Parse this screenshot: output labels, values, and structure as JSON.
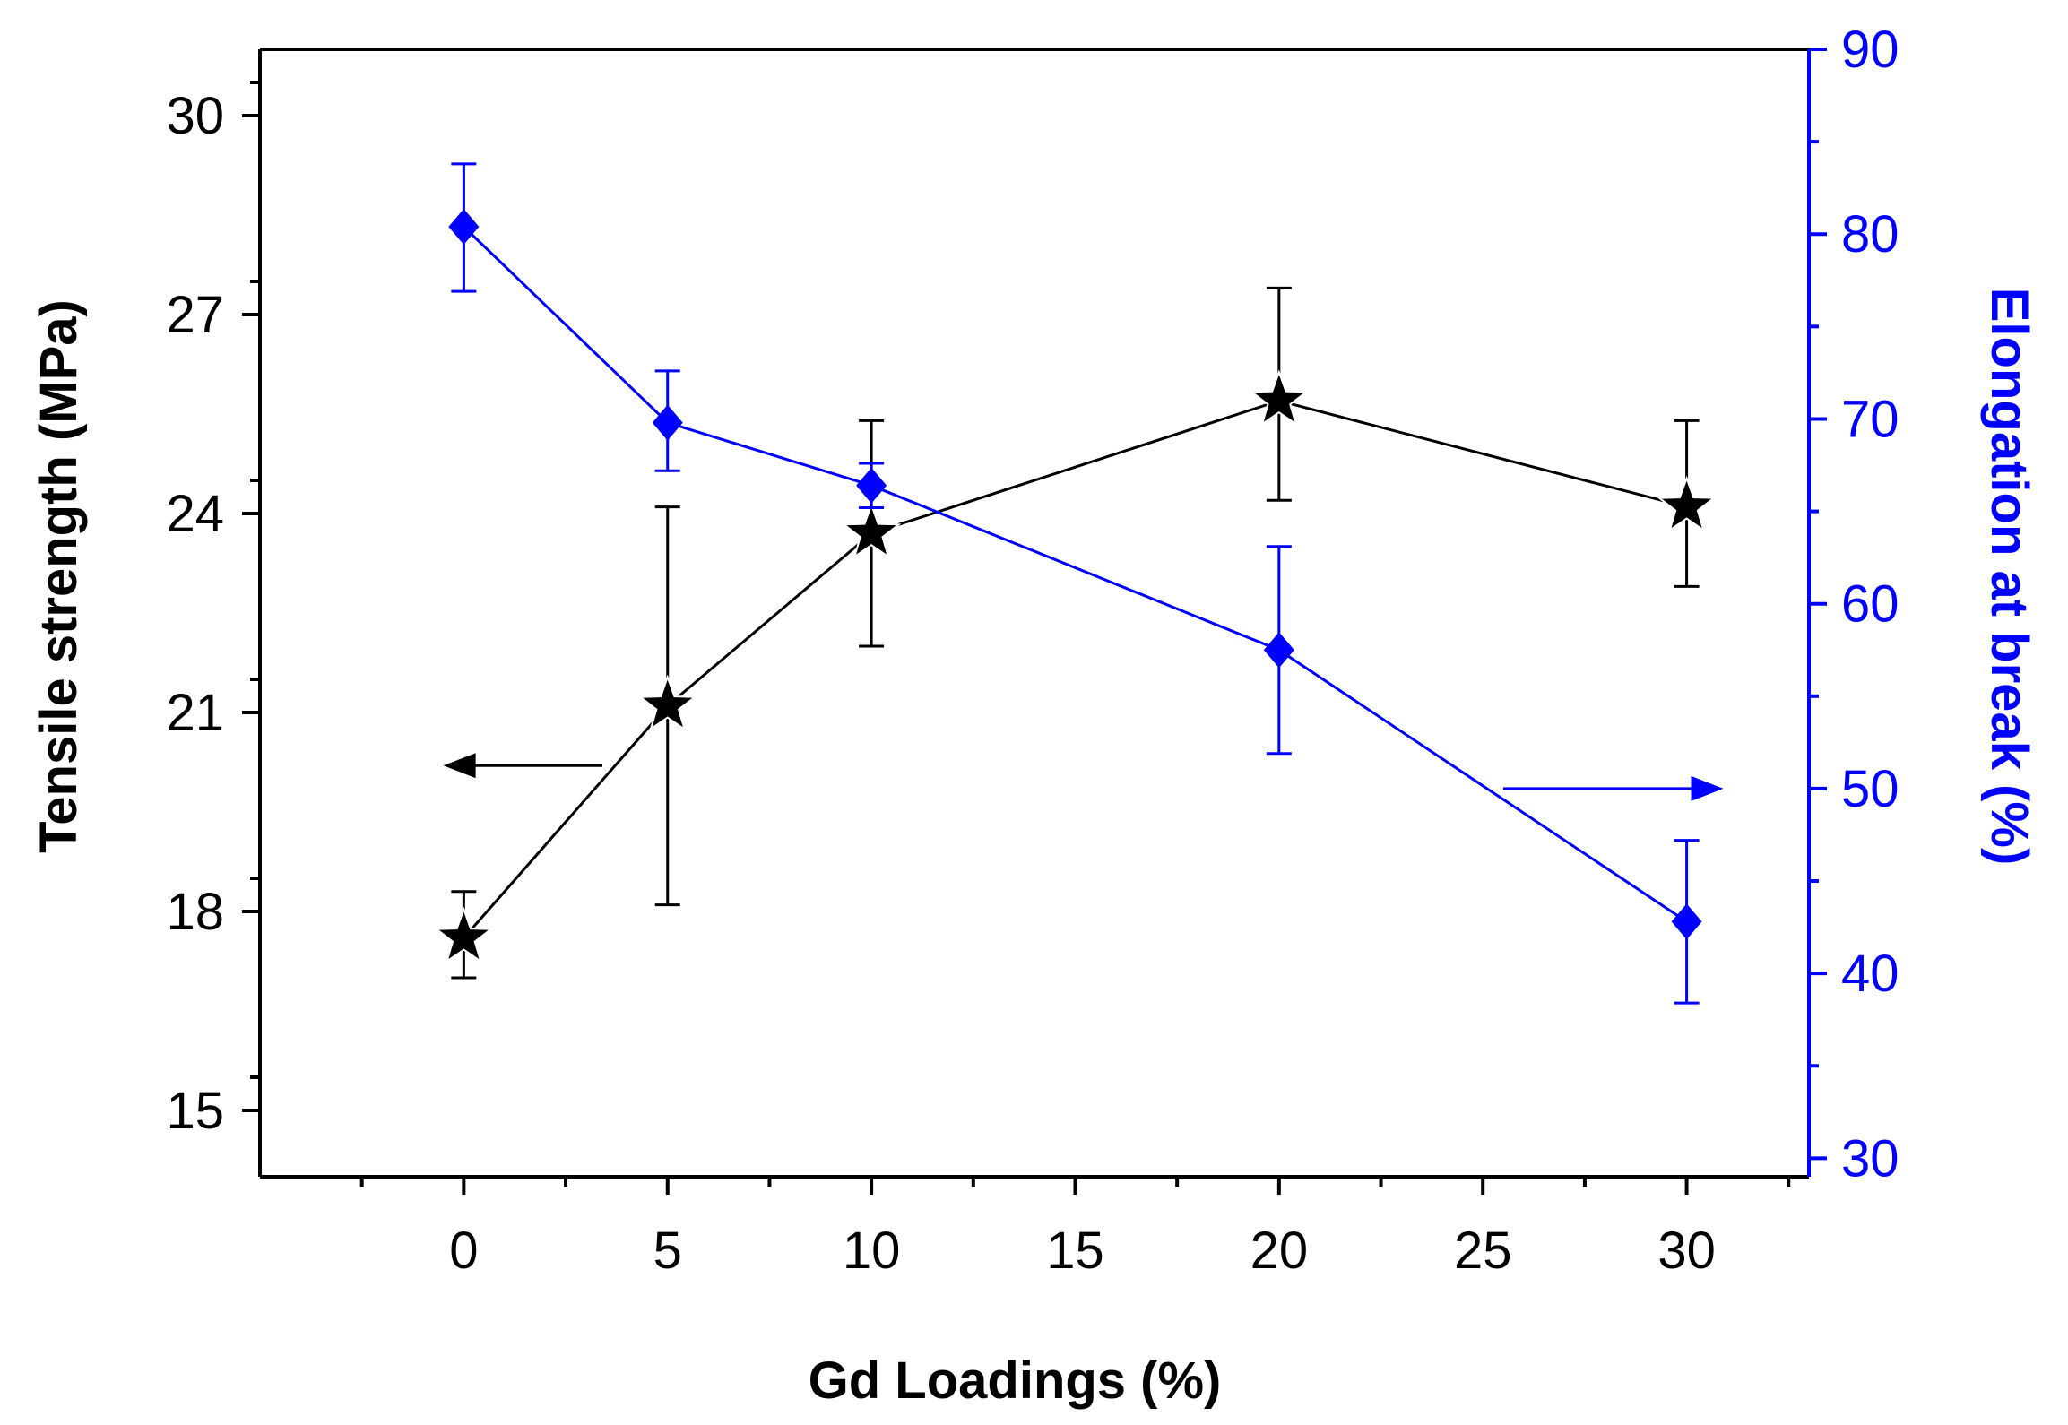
{
  "chart_data": {
    "type": "line",
    "title": "",
    "xlabel": "Gd  Loadings (%)",
    "ylabel_left": "Tensile strength (MPa)",
    "ylabel_right": "Elongation at break (%)",
    "xlim": [
      -5,
      33
    ],
    "ylim_left": [
      14,
      31
    ],
    "ylim_right": [
      29,
      90
    ],
    "x_ticks": [
      0,
      5,
      10,
      15,
      20,
      25,
      30
    ],
    "y_left_ticks": [
      15,
      18,
      21,
      24,
      27,
      30
    ],
    "y_right_ticks": [
      30,
      40,
      50,
      60,
      70,
      80,
      90
    ],
    "grid": false,
    "series": [
      {
        "axis": "left",
        "color": "#000000",
        "marker": "star",
        "x": [
          0,
          5,
          10,
          20,
          30
        ],
        "y": [
          17.6,
          21.1,
          23.7,
          25.7,
          24.1
        ],
        "err_low": [
          17.0,
          18.1,
          22.0,
          24.2,
          22.9
        ],
        "err_high": [
          18.3,
          24.1,
          25.4,
          27.4,
          25.4
        ]
      },
      {
        "axis": "right",
        "color": "#0000ff",
        "marker": "diamond",
        "x": [
          0,
          5,
          10,
          20,
          30
        ],
        "y": [
          80.4,
          69.8,
          66.4,
          57.5,
          42.8
        ],
        "err_low": [
          76.9,
          67.2,
          65.2,
          51.9,
          38.4
        ],
        "err_high": [
          83.8,
          72.6,
          67.6,
          63.1,
          47.2
        ]
      }
    ],
    "annotations": [
      {
        "type": "arrow",
        "direction": "left",
        "axis": "left",
        "color": "#000000",
        "x_from": 3.4,
        "x_to": -0.5,
        "y": 20.2
      },
      {
        "type": "arrow",
        "direction": "right",
        "axis": "right",
        "color": "#0000ff",
        "x_from": 25.5,
        "x_to": 30.9,
        "y": 50
      }
    ]
  }
}
